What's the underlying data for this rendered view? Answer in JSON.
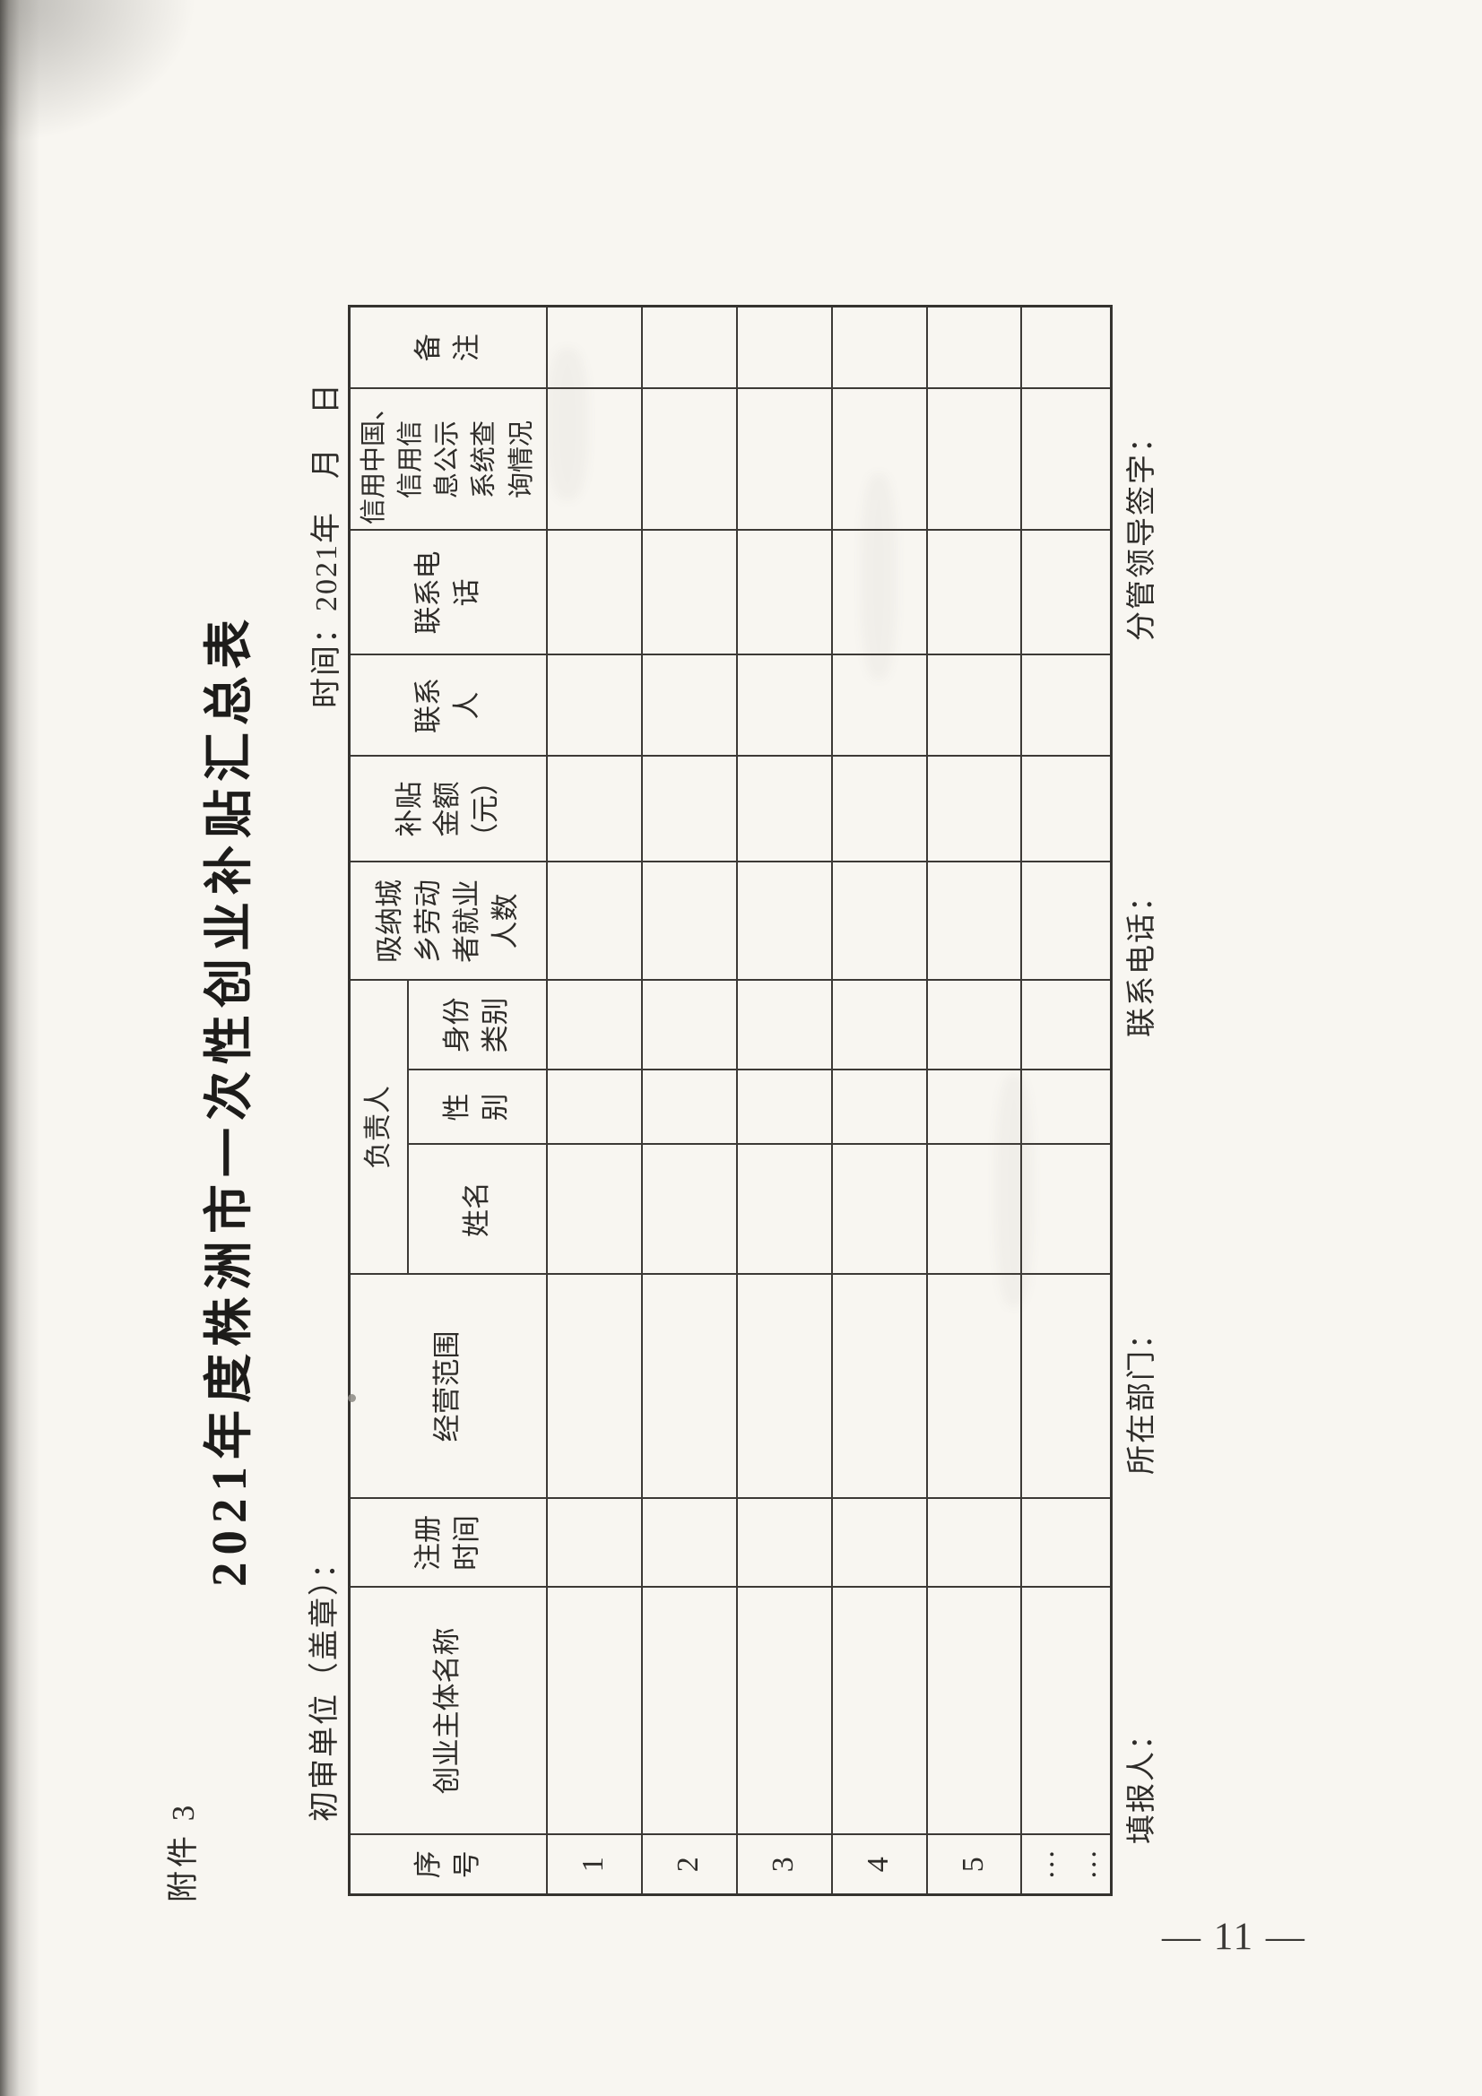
{
  "page": {
    "attachment_label": "附件 3",
    "title": "2021年度株洲市一次性创业补贴汇总表",
    "review_unit_line": "初审单位（盖章）：",
    "date_line": "时间：2021年　月　日",
    "page_number": "— 11 —"
  },
  "table": {
    "headers": {
      "seq": "序\n号",
      "entity_name": "创业主体名称",
      "reg_time": "注册\n时间",
      "business_scope": "经营范围",
      "person_in_charge": "负责人",
      "name": "姓名",
      "gender": "性\n别",
      "identity_type": "身份\n类别",
      "employed_workers": "吸纳城\n乡劳动\n者就业\n人数",
      "subsidy_amount": "补贴\n金额\n（元）",
      "contact_person": "联系\n人",
      "contact_phone": "联系电\n话",
      "credit_check": "信用中国、\n信用信\n息公示\n系统查\n询情况",
      "remarks": "备\n注"
    },
    "row_numbers": [
      "1",
      "2",
      "3",
      "4",
      "5",
      "…\n…"
    ],
    "empty_cell_count_per_row": 12
  },
  "footer": {
    "items": [
      "填报人：",
      "所在部门：",
      "联系电话：",
      "分管领导签字："
    ]
  },
  "colors": {
    "paper": "#f8f6f1",
    "ink": "#2e2c29",
    "grid_line": "#3d3a36",
    "edge_shadow": "#3e3c38"
  }
}
